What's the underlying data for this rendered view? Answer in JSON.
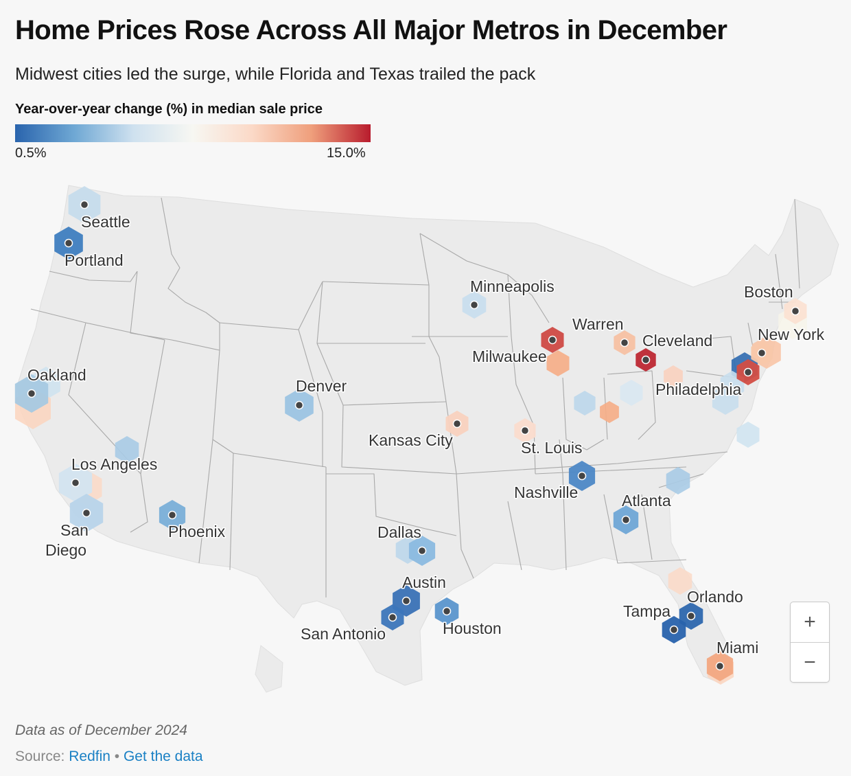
{
  "title": "Home Prices Rose Across All Major Metros in December",
  "subtitle": "Midwest cities led the surge, while Florida and Texas trailed the pack",
  "legend": {
    "title": "Year-over-year change (%) in median sale price",
    "min_label": "0.5%",
    "max_label": "15.0%",
    "colors": [
      "#2a64ad",
      "#6fa8d4",
      "#cfe1ef",
      "#f7f7f2",
      "#fbd9c7",
      "#ef9f7c",
      "#b81c2d"
    ]
  },
  "cities": [
    {
      "name": "Seattle",
      "color": "#c6dcec"
    },
    {
      "name": "Portland",
      "color": "#3f7ec0"
    },
    {
      "name": "Oakland",
      "color": "#a7c9e2"
    },
    {
      "name": "Los Angeles",
      "color": "#d3e4f0"
    },
    {
      "name": "San Diego",
      "color": "#b8d4ea"
    },
    {
      "name": "Phoenix",
      "color": "#7aafd8"
    },
    {
      "name": "Denver",
      "color": "#9cc4e3"
    },
    {
      "name": "Minneapolis",
      "color": "#c9deee"
    },
    {
      "name": "Kansas City",
      "color": "#f9d2bf"
    },
    {
      "name": "St. Louis",
      "color": "#fbdccd"
    },
    {
      "name": "Milwaukee",
      "color": "#cf4a44"
    },
    {
      "name": "Warren",
      "color": "#f7c1a3"
    },
    {
      "name": "Cleveland",
      "color": "#bd2833"
    },
    {
      "name": "Philadelphia",
      "color": "#d34e45"
    },
    {
      "name": "New York",
      "color": "#f8c8aa"
    },
    {
      "name": "Boston",
      "color": "#fbe1d3"
    },
    {
      "name": "Nashville",
      "color": "#4d88c6"
    },
    {
      "name": "Atlanta",
      "color": "#6fa6d6"
    },
    {
      "name": "Dallas",
      "color": "#8bbbe0"
    },
    {
      "name": "Austin",
      "color": "#3a72b6"
    },
    {
      "name": "San Antonio",
      "color": "#3c76ba"
    },
    {
      "name": "Houston",
      "color": "#5a95cc"
    },
    {
      "name": "Orlando",
      "color": "#2d67ae"
    },
    {
      "name": "Tampa",
      "color": "#2862ac"
    },
    {
      "name": "Miami",
      "color": "#f2a882"
    }
  ],
  "unlabeled_hex_colors": [
    "#cfe3f0",
    "#a9cbe5",
    "#fbdac9",
    "#fbd6c1",
    "#f6ad86",
    "#bcd7eb",
    "#c8deed",
    "#d9e8f2",
    "#fad2bf",
    "#f8c4a6",
    "#f6f4ea",
    "#2f6ab0"
  ],
  "zoom": {
    "in_label": "+",
    "out_label": "−"
  },
  "footnote": "Data as of December 2024",
  "source": {
    "prefix": "Source: ",
    "link1": "Redfin",
    "separator": " • ",
    "link2": "Get the data"
  }
}
